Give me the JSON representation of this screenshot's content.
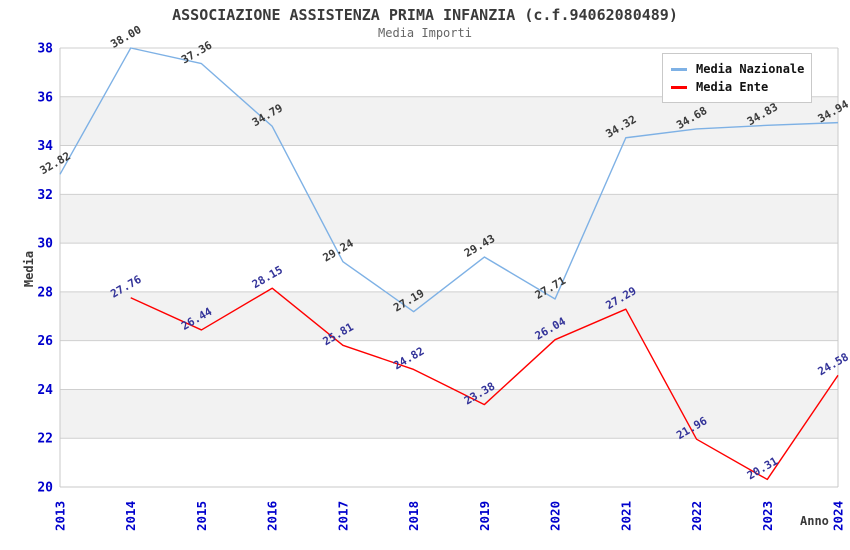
{
  "header": {
    "title": "ASSOCIAZIONE ASSISTENZA PRIMA INFANZIA (c.f.94062080489)",
    "subtitle": "Media Importi"
  },
  "axes": {
    "y_label": "Media",
    "x_label": "Anno",
    "y_ticks": [
      38,
      36,
      34,
      32,
      30,
      28,
      26,
      24,
      22,
      20
    ],
    "x_ticks": [
      "2013",
      "2014",
      "2015",
      "2016",
      "2017",
      "2018",
      "2019",
      "2020",
      "2021",
      "2022",
      "2023",
      "2024"
    ]
  },
  "legend": {
    "position": "top-right",
    "items": [
      {
        "label": "Media Nazionale",
        "color": "#7EB1E5"
      },
      {
        "label": "Media Ente",
        "color": "#FF0000"
      }
    ]
  },
  "colors": {
    "tick_label": "#0000CC",
    "title": "#3A3A3A",
    "subtitle": "#666666",
    "band_gray": "#F2F2F2",
    "gridline": "#CFCFCF",
    "plot_border": "#C9C9C9",
    "nazionale_line": "#7EB1E5",
    "ente_line": "#FF0000",
    "nazionale_point_label": "#3A3A3A",
    "ente_point_label": "#333399"
  },
  "chart_data": {
    "type": "line",
    "title": "ASSOCIAZIONE ASSISTENZA PRIMA INFANZIA (c.f.94062080489)",
    "subtitle": "Media Importi",
    "xlabel": "Anno",
    "ylabel": "Media",
    "x": [
      "2013",
      "2014",
      "2015",
      "2016",
      "2017",
      "2018",
      "2019",
      "2020",
      "2021",
      "2022",
      "2023",
      "2024"
    ],
    "ylim": [
      20,
      38
    ],
    "y_tick_step": 2,
    "grid": "horizontal-gridlines-with-alternating-gray-bands",
    "legend_position": "top-right",
    "point_labels_visible": true,
    "series": [
      {
        "name": "Media Nazionale",
        "color": "#7EB1E5",
        "label_color": "#3A3A3A",
        "values": [
          32.82,
          38.0,
          37.36,
          34.79,
          29.24,
          27.19,
          29.43,
          27.71,
          34.32,
          34.68,
          34.83,
          34.94
        ]
      },
      {
        "name": "Media Ente",
        "color": "#FF0000",
        "label_color": "#333399",
        "values": [
          null,
          27.76,
          26.44,
          28.15,
          25.81,
          24.82,
          23.38,
          26.04,
          27.29,
          21.96,
          20.31,
          24.58
        ]
      }
    ]
  }
}
